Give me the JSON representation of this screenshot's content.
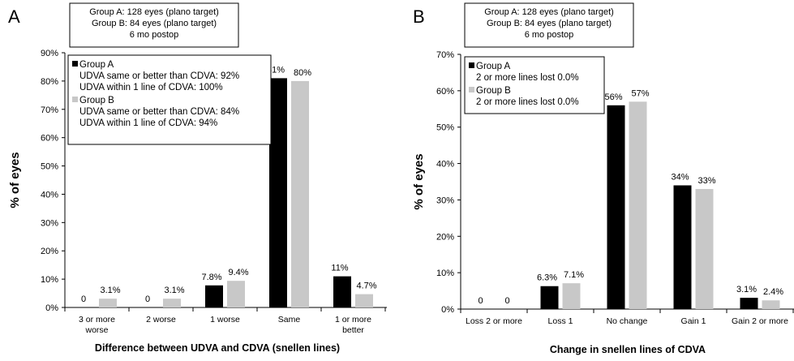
{
  "chart_data": [
    {
      "panel_label": "A",
      "type": "bar",
      "categories": [
        "3 or more worse",
        "2 worse",
        "1 worse",
        "Same",
        "1 or more better"
      ],
      "category_lines": [
        [
          "3 or more",
          "worse"
        ],
        [
          "2 worse"
        ],
        [
          "1 worse"
        ],
        [
          "Same"
        ],
        [
          "1 or more",
          "better"
        ]
      ],
      "series": [
        {
          "name": "Group A",
          "color": "#000000",
          "values": [
            0,
            0,
            7.8,
            81,
            11
          ],
          "labels": [
            "0",
            "0",
            "7.8%",
            "81%",
            "11%"
          ]
        },
        {
          "name": "Group B",
          "color": "#c8c8c8",
          "values": [
            3.1,
            3.1,
            9.4,
            80,
            4.7
          ],
          "labels": [
            "3.1%",
            "3.1%",
            "9.4%",
            "80%",
            "4.7%"
          ]
        }
      ],
      "ylim": [
        0,
        90
      ],
      "yticks": [
        "0%",
        "10%",
        "20%",
        "30%",
        "40%",
        "50%",
        "60%",
        "70%",
        "80%",
        "90%"
      ],
      "ylabel": "% of eyes",
      "xlabel": "Difference between  UDVA and CDVA (snellen lines)",
      "header_box": [
        "Group A: 128 eyes (plano target)",
        "Group B:   84 eyes (plano target)",
        "6 mo  postop"
      ],
      "legend_box": {
        "groups": [
          {
            "name": "Group A",
            "color": "#000000",
            "lines": [
              "UDVA same or better than CDVA: 92%",
              "UDVA within 1 line of CDVA: 100%"
            ]
          },
          {
            "name": "Group B",
            "color": "#c8c8c8",
            "lines": [
              "UDVA same or better than CDVA: 84%",
              "UDVA within 1 line of CDVA: 94%"
            ]
          }
        ]
      }
    },
    {
      "panel_label": "B",
      "type": "bar",
      "categories": [
        "Loss 2 or more",
        "Loss 1",
        "No change",
        "Gain 1",
        "Gain 2 or more"
      ],
      "category_lines": [
        [
          "Loss 2 or more"
        ],
        [
          "Loss 1"
        ],
        [
          "No change"
        ],
        [
          "Gain 1"
        ],
        [
          "Gain 2 or more"
        ]
      ],
      "series": [
        {
          "name": "Group A",
          "color": "#000000",
          "values": [
            0,
            6.3,
            56,
            34,
            3.1
          ],
          "labels": [
            "0",
            "6.3%",
            "56%",
            "34%",
            "3.1%"
          ]
        },
        {
          "name": "Group B",
          "color": "#c8c8c8",
          "values": [
            0,
            7.1,
            57,
            33,
            2.4
          ],
          "labels": [
            "0",
            "7.1%",
            "57%",
            "33%",
            "2.4%"
          ]
        }
      ],
      "ylim": [
        0,
        70
      ],
      "yticks": [
        "0%",
        "10%",
        "20%",
        "30%",
        "40%",
        "50%",
        "60%",
        "70%"
      ],
      "ylabel": "% of eyes",
      "xlabel": "Change in snellen lines of CDVA",
      "header_box": [
        "Group A: 128 eyes (plano target)",
        "Group B:   84 eyes (plano target)",
        "6 mo  postop"
      ],
      "legend_box": {
        "groups": [
          {
            "name": "Group A",
            "color": "#000000",
            "lines": [
              "2 or more lines lost 0.0%"
            ]
          },
          {
            "name": "Group B",
            "color": "#c8c8c8",
            "lines": [
              "2 or more lines lost 0.0%"
            ]
          }
        ]
      }
    }
  ]
}
